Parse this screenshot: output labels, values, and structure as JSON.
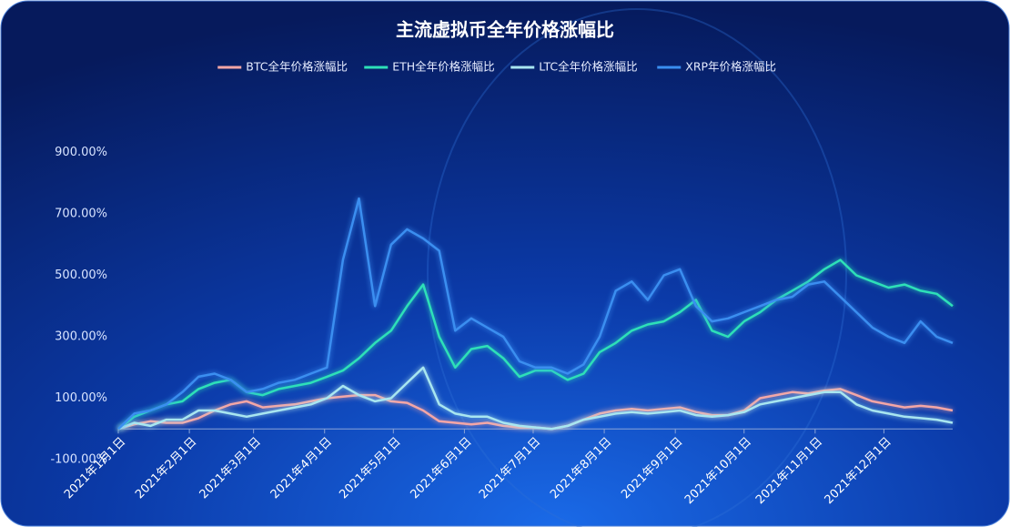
{
  "chart_data": {
    "type": "line",
    "title": "主流虚拟币全年价格涨幅比",
    "x": [
      "2021-01-01",
      "2021-01-08",
      "2021-01-15",
      "2021-01-22",
      "2021-01-29",
      "2021-02-05",
      "2021-02-12",
      "2021-02-19",
      "2021-02-26",
      "2021-03-05",
      "2021-03-12",
      "2021-03-19",
      "2021-03-26",
      "2021-04-02",
      "2021-04-09",
      "2021-04-16",
      "2021-04-23",
      "2021-04-30",
      "2021-05-07",
      "2021-05-14",
      "2021-05-21",
      "2021-05-28",
      "2021-06-04",
      "2021-06-11",
      "2021-06-18",
      "2021-06-25",
      "2021-07-02",
      "2021-07-09",
      "2021-07-16",
      "2021-07-23",
      "2021-07-30",
      "2021-08-06",
      "2021-08-13",
      "2021-08-20",
      "2021-08-27",
      "2021-09-03",
      "2021-09-10",
      "2021-09-17",
      "2021-09-24",
      "2021-10-01",
      "2021-10-08",
      "2021-10-15",
      "2021-10-22",
      "2021-10-29",
      "2021-11-05",
      "2021-11-12",
      "2021-11-19",
      "2021-11-26",
      "2021-12-03",
      "2021-12-10",
      "2021-12-17",
      "2021-12-24",
      "2021-12-31"
    ],
    "xlim": [
      "2021-01-01",
      "2021-12-31"
    ],
    "xticks": [
      {
        "value": "2021-01-01",
        "label": "2021年1月1日"
      },
      {
        "value": "2021-02-01",
        "label": "2021年2月1日"
      },
      {
        "value": "2021-03-01",
        "label": "2021年3月1日"
      },
      {
        "value": "2021-04-01",
        "label": "2021年4月1日"
      },
      {
        "value": "2021-05-01",
        "label": "2021年5月1日"
      },
      {
        "value": "2021-06-01",
        "label": "2021年6月1日"
      },
      {
        "value": "2021-07-01",
        "label": "2021年7月1日"
      },
      {
        "value": "2021-08-01",
        "label": "2021年8月1日"
      },
      {
        "value": "2021-09-01",
        "label": "2021年9月1日"
      },
      {
        "value": "2021-10-01",
        "label": "2021年10月1日"
      },
      {
        "value": "2021-11-01",
        "label": "2021年11月1日"
      },
      {
        "value": "2021-12-01",
        "label": "2021年12月1日"
      }
    ],
    "ylim": [
      -100,
      1100
    ],
    "yticks": [
      {
        "value": -100,
        "label": "-100.00%"
      },
      {
        "value": 100,
        "label": "100.00%"
      },
      {
        "value": 300,
        "label": "300.00%"
      },
      {
        "value": 500,
        "label": "500.00%"
      },
      {
        "value": 700,
        "label": "700.00%"
      },
      {
        "value": 900,
        "label": "900.00%"
      }
    ],
    "legend_position": "top",
    "series": [
      {
        "name": "BTC全年价格涨幅比",
        "color": "#f4a6a6",
        "values": [
          0,
          15,
          25,
          20,
          20,
          35,
          60,
          80,
          90,
          70,
          75,
          80,
          90,
          100,
          105,
          110,
          110,
          90,
          85,
          60,
          25,
          20,
          15,
          20,
          10,
          5,
          5,
          0,
          10,
          30,
          50,
          60,
          65,
          60,
          65,
          70,
          55,
          45,
          45,
          60,
          100,
          110,
          120,
          115,
          125,
          130,
          110,
          90,
          80,
          70,
          75,
          70,
          60
        ]
      },
      {
        "name": "ETH全年价格涨幅比",
        "color": "#2de0b8",
        "values": [
          0,
          40,
          60,
          80,
          90,
          130,
          150,
          160,
          120,
          110,
          130,
          140,
          150,
          170,
          190,
          230,
          280,
          320,
          400,
          470,
          300,
          200,
          260,
          270,
          230,
          170,
          190,
          190,
          160,
          180,
          250,
          280,
          320,
          340,
          350,
          380,
          420,
          320,
          300,
          350,
          380,
          420,
          450,
          480,
          520,
          550,
          500,
          480,
          460,
          470,
          450,
          440,
          400
        ]
      },
      {
        "name": "LTC全年价格涨幅比",
        "color": "#a8e6f0",
        "values": [
          0,
          20,
          10,
          30,
          30,
          60,
          60,
          50,
          40,
          50,
          60,
          70,
          80,
          100,
          140,
          110,
          90,
          100,
          150,
          200,
          80,
          50,
          40,
          40,
          20,
          10,
          5,
          0,
          10,
          30,
          40,
          50,
          55,
          50,
          55,
          60,
          45,
          40,
          45,
          55,
          80,
          90,
          100,
          110,
          120,
          120,
          80,
          60,
          50,
          40,
          35,
          30,
          20
        ]
      },
      {
        "name": "XRP年价格涨幅比",
        "color": "#3a8ef0",
        "values": [
          0,
          50,
          60,
          80,
          120,
          170,
          180,
          160,
          120,
          130,
          150,
          160,
          180,
          200,
          550,
          750,
          400,
          600,
          650,
          620,
          580,
          320,
          360,
          330,
          300,
          220,
          200,
          200,
          180,
          210,
          300,
          450,
          480,
          420,
          500,
          520,
          400,
          350,
          360,
          380,
          400,
          420,
          430,
          470,
          480,
          430,
          380,
          330,
          300,
          280,
          350,
          300,
          280
        ]
      }
    ]
  }
}
